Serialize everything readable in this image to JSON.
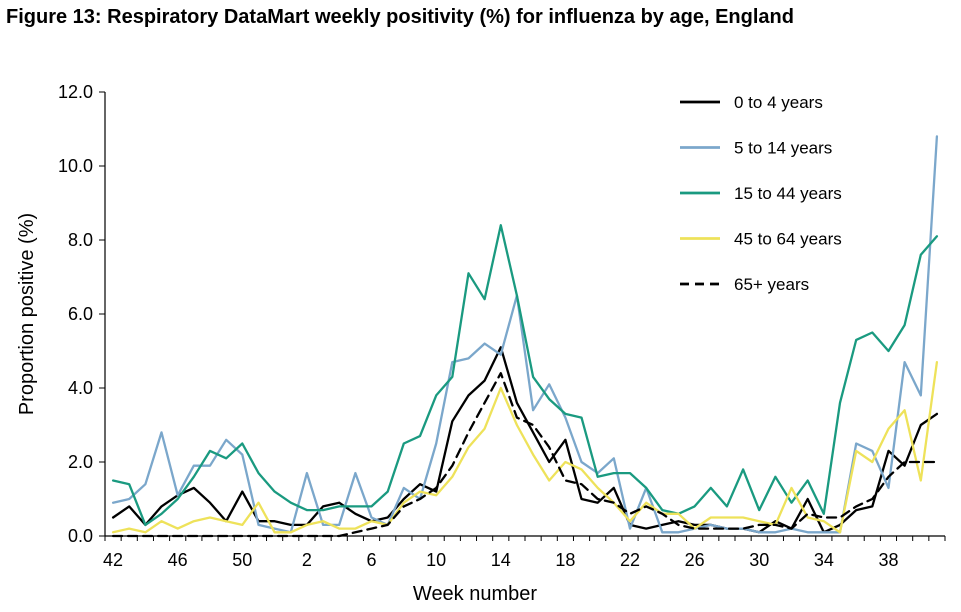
{
  "chart_data": {
    "type": "line",
    "title": "Figure 13: Respiratory DataMart weekly positivity (%) for influenza by age, England",
    "xlabel": "Week number",
    "ylabel": "Proportion positive (%)",
    "ylim": [
      0,
      12
    ],
    "yticks": [
      "0.0",
      "2.0",
      "4.0",
      "6.0",
      "8.0",
      "10.0",
      "12.0"
    ],
    "x": [
      42,
      43,
      44,
      45,
      46,
      47,
      48,
      49,
      50,
      51,
      52,
      1,
      2,
      3,
      4,
      5,
      6,
      7,
      8,
      9,
      10,
      11,
      12,
      13,
      14,
      15,
      16,
      17,
      18,
      19,
      20,
      21,
      22,
      23,
      24,
      25,
      26,
      27,
      28,
      29,
      30,
      31,
      32,
      33,
      34,
      35,
      36,
      37,
      38,
      39,
      40,
      41
    ],
    "xticks": [
      "42",
      "46",
      "50",
      "2",
      "6",
      "10",
      "14",
      "18",
      "22",
      "26",
      "30",
      "34",
      "38"
    ],
    "legend_position": "top-right",
    "series": [
      {
        "name": "0 to 4 years",
        "color": "#000000",
        "dash": false,
        "values": [
          0.5,
          0.8,
          0.3,
          0.8,
          1.1,
          1.3,
          0.9,
          0.4,
          1.2,
          0.4,
          0.4,
          0.3,
          0.3,
          0.8,
          0.9,
          0.6,
          0.4,
          0.5,
          1.0,
          1.4,
          1.2,
          3.1,
          3.8,
          4.2,
          5.1,
          3.6,
          2.8,
          2.0,
          2.6,
          1.0,
          0.9,
          1.3,
          0.3,
          0.2,
          0.3,
          0.4,
          0.3,
          0.3,
          0.2,
          0.2,
          0.1,
          0.4,
          0.2,
          1.0,
          0.1,
          0.3,
          0.7,
          0.8,
          2.3,
          1.9,
          3.0,
          3.3
        ]
      },
      {
        "name": "5 to 14 years",
        "color": "#7ba7cb",
        "dash": false,
        "values": [
          0.9,
          1.0,
          1.4,
          2.8,
          1.1,
          1.9,
          1.9,
          2.6,
          2.2,
          0.3,
          0.2,
          0.1,
          1.7,
          0.3,
          0.3,
          1.7,
          0.5,
          0.3,
          1.3,
          1.0,
          2.5,
          4.7,
          4.8,
          5.2,
          4.9,
          6.5,
          3.4,
          4.1,
          3.2,
          2.0,
          1.7,
          2.1,
          0.2,
          1.3,
          0.1,
          0.1,
          0.2,
          0.3,
          0.2,
          0.2,
          0.1,
          0.1,
          0.2,
          0.1,
          0.1,
          0.1,
          2.5,
          2.3,
          1.3,
          4.7,
          3.8,
          10.8
        ]
      },
      {
        "name": "15 to 44 years",
        "color": "#1a9a80",
        "dash": false,
        "values": [
          1.5,
          1.4,
          0.3,
          0.6,
          1.0,
          1.6,
          2.3,
          2.1,
          2.5,
          1.7,
          1.2,
          0.9,
          0.7,
          0.7,
          0.8,
          0.8,
          0.8,
          1.2,
          2.5,
          2.7,
          3.8,
          4.3,
          7.1,
          6.4,
          8.4,
          6.5,
          4.3,
          3.7,
          3.3,
          3.2,
          1.6,
          1.7,
          1.7,
          1.3,
          0.7,
          0.6,
          0.8,
          1.3,
          0.8,
          1.8,
          0.7,
          1.6,
          0.9,
          1.5,
          0.6,
          3.6,
          5.3,
          5.5,
          5.0,
          5.7,
          7.6,
          8.1
        ]
      },
      {
        "name": "45 to 64 years",
        "color": "#eee25a",
        "dash": false,
        "values": [
          0.1,
          0.2,
          0.1,
          0.4,
          0.2,
          0.4,
          0.5,
          0.4,
          0.3,
          0.9,
          0.1,
          0.1,
          0.3,
          0.4,
          0.2,
          0.2,
          0.4,
          0.3,
          0.9,
          1.2,
          1.1,
          1.6,
          2.4,
          2.9,
          4.0,
          3.0,
          2.2,
          1.5,
          2.0,
          1.8,
          1.3,
          0.9,
          0.4,
          0.9,
          0.6,
          0.6,
          0.2,
          0.5,
          0.5,
          0.5,
          0.4,
          0.3,
          1.3,
          0.5,
          0.4,
          0.1,
          2.3,
          2.0,
          2.9,
          3.4,
          1.5,
          4.7
        ]
      },
      {
        "name": "65+ years",
        "color": "#000000",
        "dash": true,
        "values": [
          0.0,
          0.0,
          0.0,
          0.0,
          0.0,
          0.0,
          0.0,
          0.0,
          0.0,
          0.0,
          0.0,
          0.0,
          0.0,
          0.0,
          0.0,
          0.1,
          0.2,
          0.3,
          0.8,
          1.0,
          1.3,
          1.9,
          2.8,
          3.6,
          4.4,
          3.2,
          3.0,
          2.4,
          1.5,
          1.4,
          1.0,
          0.9,
          0.6,
          0.8,
          0.6,
          0.3,
          0.2,
          0.2,
          0.2,
          0.2,
          0.3,
          0.3,
          0.2,
          0.6,
          0.5,
          0.5,
          0.8,
          1.0,
          1.6,
          2.0,
          2.0,
          2.0
        ]
      }
    ]
  }
}
